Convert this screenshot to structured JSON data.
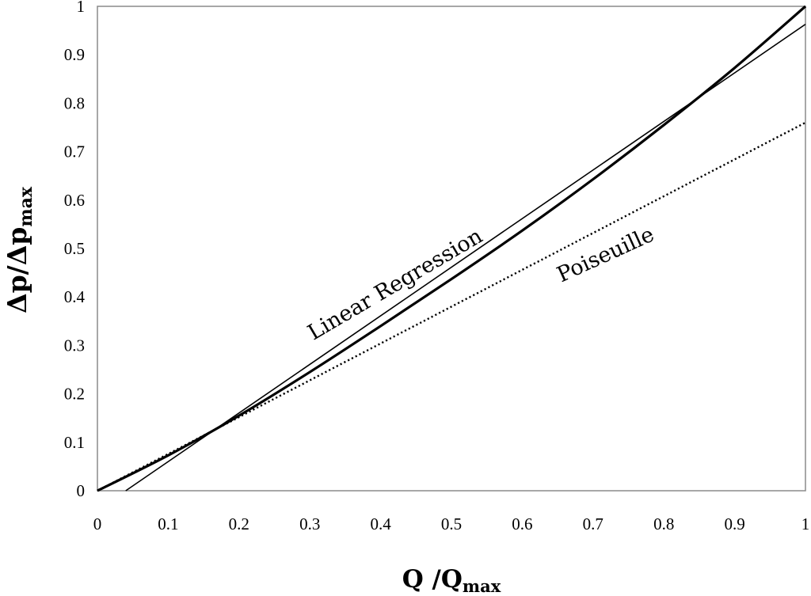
{
  "chart_data": {
    "type": "line",
    "title": "",
    "xlabel": "Q /Q",
    "xlabel_sub": "max",
    "ylabel": "Δp/Δp",
    "ylabel_sub": "max",
    "xlim": [
      0,
      1
    ],
    "ylim": [
      0,
      1
    ],
    "xticks": [
      "0",
      "0.1",
      "0.2",
      "0.3",
      "0.4",
      "0.5",
      "0.6",
      "0.7",
      "0.8",
      "0.9",
      "1"
    ],
    "yticks": [
      "0",
      "0.1",
      "0.2",
      "0.3",
      "0.4",
      "0.5",
      "0.6",
      "0.7",
      "0.8",
      "0.9",
      "1"
    ],
    "grid": false,
    "legend": "none",
    "series": [
      {
        "style": "thick-solid",
        "x": [
          0,
          0.1,
          0.2,
          0.3,
          0.4,
          0.5,
          0.6,
          0.7,
          0.8,
          0.9,
          1
        ],
        "y": [
          0,
          0.073,
          0.155,
          0.245,
          0.34,
          0.437,
          0.537,
          0.643,
          0.755,
          0.873,
          1.0
        ]
      },
      {
        "name": "Linear Regression",
        "style": "thin-solid",
        "x": [
          0.04,
          1
        ],
        "y": [
          0,
          0.963
        ]
      },
      {
        "name": "Poiseuille",
        "style": "dotted",
        "x": [
          0,
          1
        ],
        "y": [
          0,
          0.76
        ]
      }
    ],
    "annotations": [
      {
        "text": "Linear Regression",
        "x": 0.305,
        "y": 0.31,
        "angle": -30.5
      },
      {
        "text": "Poiseuille",
        "x": 0.655,
        "y": 0.43,
        "angle": -24.5
      }
    ]
  }
}
